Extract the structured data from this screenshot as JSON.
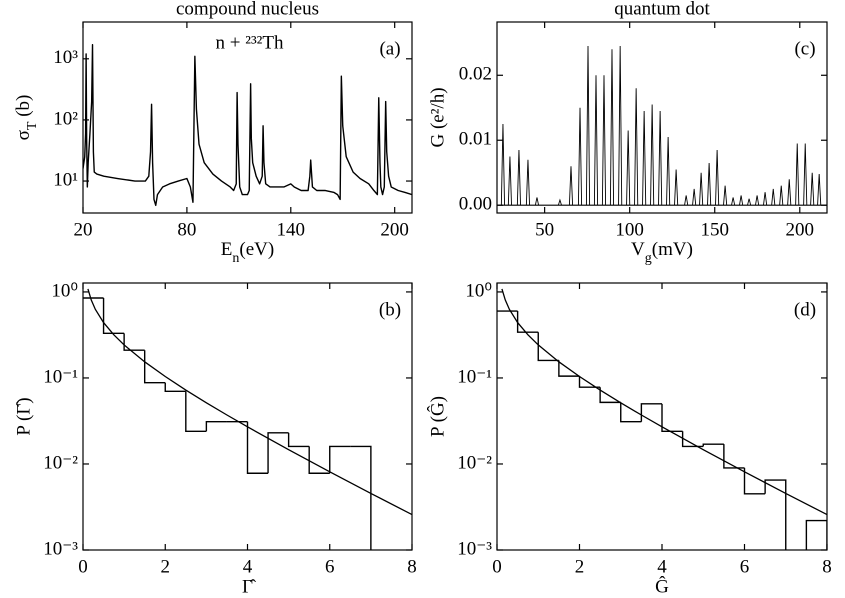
{
  "chart_data": [
    {
      "type": "line",
      "title": "compound nucleus",
      "panel_label": "(a)",
      "annotation": "n + ²³²Th",
      "xlabel": [
        "E",
        "n",
        "(eV)"
      ],
      "ylabel": [
        "σ",
        "T",
        " (b)"
      ],
      "xlim": [
        20,
        210
      ],
      "ylim": [
        3,
        4000
      ],
      "log_y": true,
      "xticks": [
        20,
        80,
        140,
        200
      ],
      "yticks": [
        {
          "value": 10,
          "label": "10¹"
        },
        {
          "value": 100,
          "label": "10²"
        },
        {
          "value": 1000,
          "label": "10³"
        }
      ],
      "color": "#000000",
      "x": [
        20,
        21,
        21.5,
        21.8,
        22.1,
        22.5,
        23,
        24,
        25,
        25.5,
        26,
        26.5,
        28,
        32,
        40,
        50,
        56,
        58,
        59,
        59.6,
        60.2,
        61,
        62,
        63,
        66,
        70,
        75,
        80,
        82,
        83.5,
        84.6,
        85.5,
        87,
        90,
        95,
        100,
        105,
        107,
        108.5,
        109,
        109.5,
        110.5,
        112,
        115,
        116,
        116.8,
        117.2,
        118,
        120,
        122,
        123.5,
        124,
        124.5,
        125.5,
        128,
        132,
        136,
        140,
        142,
        146,
        150,
        151,
        151.5,
        152.5,
        155,
        160,
        165,
        167,
        168.5,
        169.2,
        170,
        172,
        176,
        180,
        185,
        188,
        190,
        190.8,
        191.5,
        192,
        193,
        194,
        194.8,
        195.4,
        196.5,
        198,
        202,
        206,
        210
      ],
      "values": [
        16,
        25,
        60,
        1200,
        50,
        8,
        20,
        60,
        200,
        1700,
        30,
        14,
        13,
        12,
        11,
        10,
        10,
        12,
        30,
        180,
        20,
        5,
        4,
        6,
        8,
        9,
        10,
        11,
        8,
        4.5,
        1100,
        150,
        40,
        20,
        13,
        10,
        8,
        7,
        9,
        280,
        40,
        8,
        6,
        6,
        7,
        390,
        50,
        20,
        12,
        9,
        12,
        80,
        20,
        9,
        8,
        8,
        8,
        9,
        8,
        7,
        7,
        12,
        22,
        8,
        7,
        7,
        6.5,
        6,
        5,
        520,
        80,
        25,
        14,
        11,
        9,
        7,
        6,
        230,
        20,
        8,
        6,
        8,
        200,
        30,
        12,
        8,
        7,
        6.5,
        6
      ]
    },
    {
      "type": "histogram",
      "panel_label": "(b)",
      "xlabel": "Γ̂",
      "ylabel": "P (Γ̂)",
      "xlim": [
        0,
        8
      ],
      "ylim": [
        0.001,
        1.27
      ],
      "log_y": true,
      "xticks": [
        0,
        2,
        4,
        6,
        8
      ],
      "yticks": [
        {
          "value": 0.001,
          "label": "10⁻³"
        },
        {
          "value": 0.01,
          "label": "10⁻²"
        },
        {
          "value": 0.1,
          "label": "10⁻¹"
        },
        {
          "value": 1,
          "label": "10⁰"
        }
      ],
      "color": "#000000",
      "bins": [
        0,
        0.5,
        1,
        1.5,
        2,
        2.5,
        3,
        3.5,
        4,
        4.5,
        5,
        5.5,
        6,
        6.5,
        7
      ],
      "counts": [
        0.85,
        0.33,
        0.21,
        0.088,
        0.07,
        0.024,
        0.031,
        0.031,
        0.0078,
        0.023,
        0.016,
        0.0078,
        0.016,
        0.016
      ],
      "curve": {
        "x": [
          0.12,
          0.2,
          0.3,
          0.5,
          0.75,
          1,
          1.5,
          2,
          2.5,
          3,
          3.5,
          4,
          5,
          6,
          7,
          8
        ],
        "values": [
          1.085,
          0.807,
          0.627,
          0.44,
          0.317,
          0.242,
          0.154,
          0.104,
          0.0723,
          0.0514,
          0.0371,
          0.027,
          0.01465,
          0.0081,
          0.00455,
          0.00258
        ]
      }
    },
    {
      "type": "peaks",
      "title": "quantum dot",
      "panel_label": "(c)",
      "xlabel": [
        "V",
        "g",
        "(mV)"
      ],
      "ylabel": "G (e²/h)",
      "xlim": [
        22,
        216
      ],
      "ylim": [
        -0.0012,
        0.0282
      ],
      "log_y": false,
      "xticks": [
        50,
        100,
        150,
        200
      ],
      "yticks": [
        {
          "value": 0,
          "label": "0.00"
        },
        {
          "value": 0.01,
          "label": "0.01"
        },
        {
          "value": 0.02,
          "label": "0.02"
        }
      ],
      "color": "#000000",
      "x": [
        25.5,
        29.6,
        34.9,
        40.2,
        45.5,
        59,
        65.5,
        70.8,
        75.5,
        80.2,
        84.9,
        89.6,
        94.4,
        99.1,
        103.8,
        108.5,
        113.2,
        117.9,
        122.6,
        127.3,
        133.2,
        137.9,
        142,
        146.7,
        151.4,
        156.1,
        160.8,
        165.5,
        170.2,
        174.9,
        179.6,
        184.4,
        189.1,
        193.8,
        198.5,
        203.2,
        207.3,
        211.4
      ],
      "values": [
        0.0125,
        0.0075,
        0.0085,
        0.007,
        0.0012,
        0.0008,
        0.006,
        0.015,
        0.0245,
        0.02,
        0.02,
        0.024,
        0.0245,
        0.0115,
        0.018,
        0.0145,
        0.0155,
        0.0145,
        0.0105,
        0.0055,
        0.0015,
        0.0025,
        0.005,
        0.0065,
        0.0085,
        0.003,
        0.0012,
        0.0015,
        0.001,
        0.0015,
        0.002,
        0.0025,
        0.003,
        0.004,
        0.0095,
        0.0095,
        0.005,
        0.0048
      ]
    },
    {
      "type": "histogram",
      "panel_label": "(d)",
      "xlabel": "Ĝ",
      "ylabel": "P (Ĝ)",
      "xlim": [
        0,
        8
      ],
      "ylim": [
        0.001,
        1.27
      ],
      "log_y": true,
      "xticks": [
        0,
        2,
        4,
        6,
        8
      ],
      "yticks": [
        {
          "value": 0.001,
          "label": "10⁻³"
        },
        {
          "value": 0.01,
          "label": "10⁻²"
        },
        {
          "value": 0.1,
          "label": "10⁻¹"
        },
        {
          "value": 1,
          "label": "10⁰"
        }
      ],
      "color": "#000000",
      "bins": [
        0,
        0.5,
        1,
        1.5,
        2,
        2.5,
        3,
        3.5,
        4,
        4.5,
        5,
        5.5,
        6,
        6.5,
        7,
        7.5,
        8
      ],
      "counts": [
        0.6,
        0.34,
        0.16,
        0.105,
        0.078,
        0.052,
        0.031,
        0.05,
        0.024,
        0.016,
        0.017,
        0.009,
        0.0045,
        0.0065,
        null,
        0.0022
      ],
      "curve": {
        "x": [
          0.12,
          0.2,
          0.3,
          0.5,
          0.75,
          1,
          1.5,
          2,
          2.5,
          3,
          3.5,
          4,
          5,
          6,
          7,
          8
        ],
        "values": [
          1.085,
          0.807,
          0.627,
          0.44,
          0.317,
          0.242,
          0.154,
          0.104,
          0.0723,
          0.0514,
          0.0371,
          0.027,
          0.01465,
          0.0081,
          0.00455,
          0.00258
        ]
      }
    }
  ]
}
